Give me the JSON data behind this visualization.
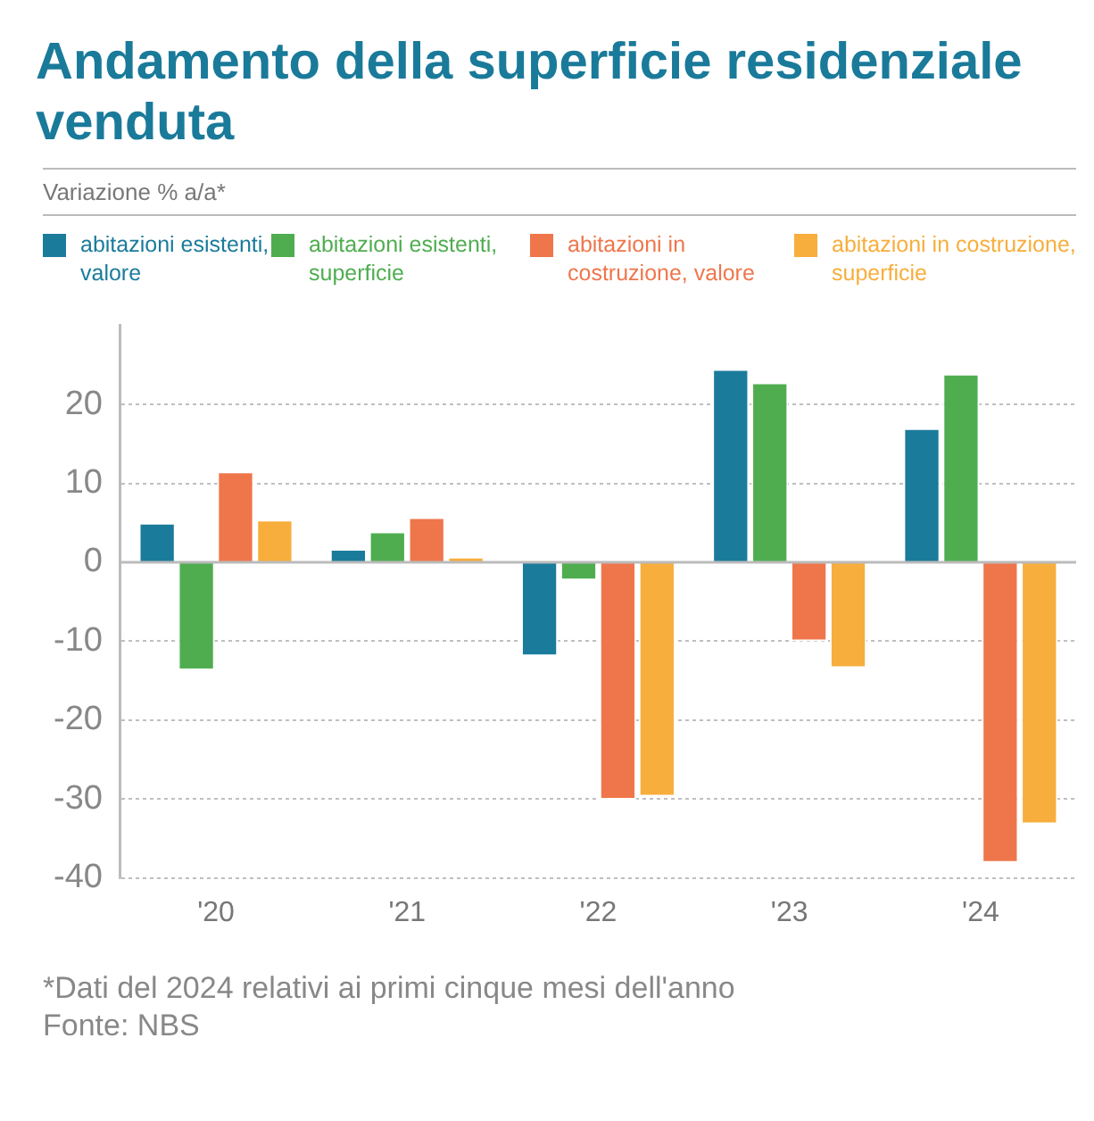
{
  "chart_data": {
    "type": "bar",
    "title": "Andamento della superficie residenziale venduta",
    "subtitle": "Variazione % a/a*",
    "categories": [
      "'20",
      "'21",
      "'22",
      "'23",
      "'24"
    ],
    "series": [
      {
        "name": "abitazioni esistenti, valore",
        "color": "#1a7b9b",
        "values": [
          5.0,
          1.7,
          -11.9,
          24.5,
          17.0
        ]
      },
      {
        "name": "abitazioni esistenti, superficie",
        "color": "#4fad50",
        "values": [
          -13.7,
          3.9,
          -2.3,
          22.8,
          23.9
        ]
      },
      {
        "name": "abitazioni in costruzione, valore",
        "color": "#ef764b",
        "values": [
          11.5,
          5.7,
          -30.1,
          -10.0,
          -38.1
        ]
      },
      {
        "name": "abitazioni in costruzione, superficie",
        "color": "#f7ae3c",
        "values": [
          5.4,
          0.7,
          -29.7,
          -13.4,
          -33.2
        ]
      }
    ],
    "ylim": [
      -40,
      30
    ],
    "yticks": [
      -40,
      -30,
      -20,
      -10,
      0,
      10,
      20
    ],
    "grid": "y",
    "legend": "top",
    "annotations": [
      "*Dati del 2024 relativi ai primi cinque mesi dell'anno",
      "Fonte: NBS"
    ]
  }
}
